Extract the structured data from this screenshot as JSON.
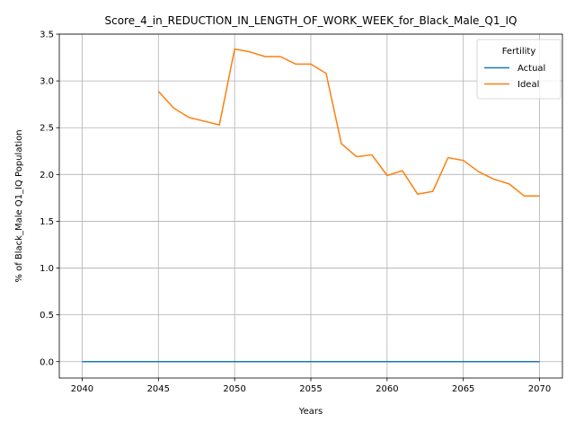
{
  "chart_data": {
    "type": "line",
    "title": "Score_4_in_REDUCTION_IN_LENGTH_OF_WORK_WEEK_for_Black_Male_Q1_IQ",
    "xlabel": "Years",
    "ylabel": "% of Black_Male Q1_IQ Population",
    "xlim": [
      2038.5,
      2071.5
    ],
    "ylim": [
      -0.175,
      3.5
    ],
    "xticks": [
      2040,
      2045,
      2050,
      2055,
      2060,
      2065,
      2070
    ],
    "xtick_labels": [
      "2040",
      "2045",
      "2050",
      "2055",
      "2060",
      "2065",
      "2070"
    ],
    "yticks": [
      0.0,
      0.5,
      1.0,
      1.5,
      2.0,
      2.5,
      3.0,
      3.5
    ],
    "ytick_labels": [
      "0.0",
      "0.5",
      "1.0",
      "1.5",
      "2.0",
      "2.5",
      "3.0",
      "3.5"
    ],
    "grid": true,
    "legend": {
      "title": "Fertility",
      "placement": "top-right"
    },
    "series": [
      {
        "name": "Actual",
        "color": "#1f77b4",
        "x": [
          2040,
          2041,
          2042,
          2043,
          2044,
          2045,
          2046,
          2047,
          2048,
          2049,
          2050,
          2051,
          2052,
          2053,
          2054,
          2055,
          2056,
          2057,
          2058,
          2059,
          2060,
          2061,
          2062,
          2063,
          2064,
          2065,
          2066,
          2067,
          2068,
          2069,
          2070
        ],
        "y": [
          0,
          0,
          0,
          0,
          0,
          0,
          0,
          0,
          0,
          0,
          0,
          0,
          0,
          0,
          0,
          0,
          0,
          0,
          0,
          0,
          0,
          0,
          0,
          0,
          0,
          0,
          0,
          0,
          0,
          0,
          0
        ]
      },
      {
        "name": "Ideal",
        "color": "#ff7f0e",
        "x": [
          2045,
          2046,
          2047,
          2048,
          2049,
          2050,
          2051,
          2052,
          2053,
          2054,
          2055,
          2056,
          2057,
          2058,
          2059,
          2060,
          2061,
          2062,
          2063,
          2064,
          2065,
          2066,
          2067,
          2068,
          2069,
          2070
        ],
        "y": [
          2.89,
          2.71,
          2.61,
          2.57,
          2.53,
          3.34,
          3.31,
          3.26,
          3.26,
          3.18,
          3.18,
          3.08,
          2.33,
          2.19,
          2.21,
          1.99,
          2.04,
          1.79,
          1.82,
          2.18,
          2.15,
          2.03,
          1.95,
          1.9,
          1.77,
          1.77
        ]
      }
    ]
  }
}
